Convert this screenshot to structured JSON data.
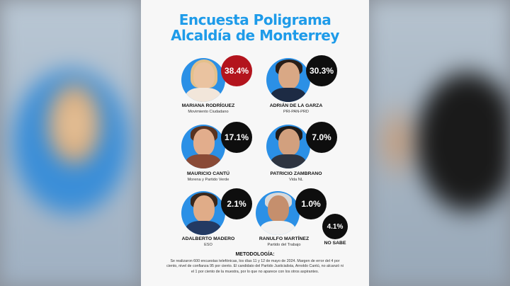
{
  "poster": {
    "title_line1": "Encuesta Poligrama",
    "title_line2": "Alcaldía de Monterrey",
    "colors": {
      "title": "#1e9be9",
      "photo_bg": "#2b90e6",
      "leader": "#b3141d",
      "other": "#0e0e0e"
    }
  },
  "candidates": [
    {
      "name": "MARIANA RODRÍGUEZ",
      "party": "Movimiento Ciudadano",
      "percent": "38.4%",
      "badge": "red"
    },
    {
      "name": "ADRIÁN DE LA GARZA",
      "party": "PRI-PAN-PRD",
      "percent": "30.3%",
      "badge": "black"
    },
    {
      "name": "MAURICIO CANTÚ",
      "party": "Morena y Partido Verde",
      "percent": "17.1%",
      "badge": "black"
    },
    {
      "name": "PATRICIO ZAMBRANO",
      "party": "Vida NL",
      "percent": "7.0%",
      "badge": "black"
    },
    {
      "name": "ADALBERTO MADERO",
      "party": "ESO",
      "percent": "2.1%",
      "badge": "black"
    },
    {
      "name": "RANULFO MARTÍNEZ",
      "party": "Partido del Trabajo",
      "percent": "1.0%",
      "badge": "black"
    }
  ],
  "no_sabe": {
    "label": "NO SABE",
    "percent": "4.1%"
  },
  "methodology": {
    "title": "METODOLOGÍA:",
    "text": "Se realizaron 600 encuestas telefónicas, los días 11 y 12 de mayo de 2024. Margen de error del 4 por ciento, nivel de confianza 95 por ciento. El candidato del Partido Justicialista, Arnoldo Cantú, no alcanzó ni el 1 por ciento de la muestra, por lo que no aparece con los otros aspirantes."
  }
}
